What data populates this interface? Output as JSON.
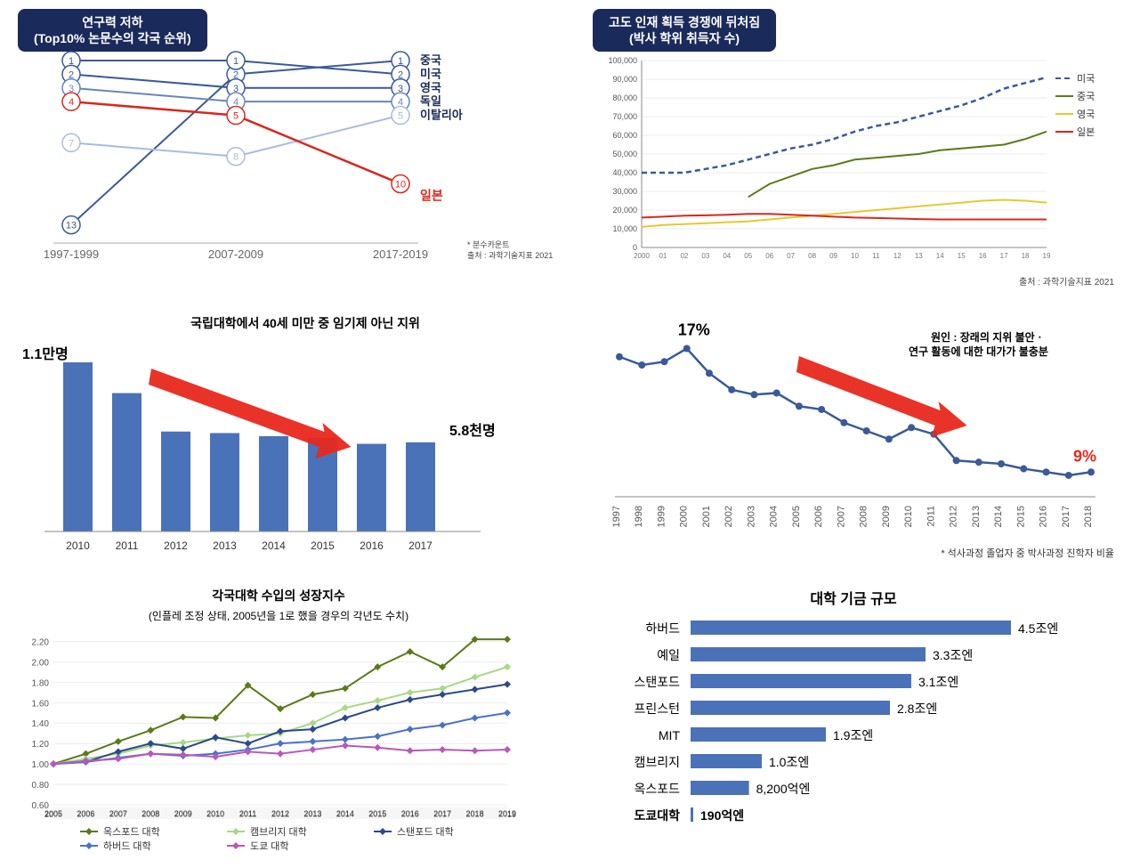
{
  "panel1": {
    "title_l1": "연구력 저하",
    "title_l2": "(Top10% 논문수의 각국 순위)",
    "periods": [
      "1997-1999",
      "2007-2009",
      "2017-2019"
    ],
    "series": [
      {
        "name": "중국",
        "color": "#3a5a98",
        "values": [
          13,
          2,
          1
        ]
      },
      {
        "name": "미국",
        "color": "#3a5a98",
        "values": [
          1,
          1,
          2
        ]
      },
      {
        "name": "영국",
        "color": "#3a5a98",
        "values": [
          2,
          3,
          3
        ]
      },
      {
        "name": "독일",
        "color": "#6a85b8",
        "values": [
          3,
          4,
          4
        ]
      },
      {
        "name": "이탈리아",
        "color": "#a8bbe0",
        "values": [
          7,
          8,
          5
        ]
      }
    ],
    "highlight": {
      "name": "일본",
      "color": "#d8281e",
      "values": [
        4,
        5,
        10
      ]
    },
    "footnote1": "* 분수카운트",
    "footnote2": "출처 : 과학기술지표 2021"
  },
  "panel2": {
    "title_l1": "고도 인재 획득 경쟁에 뒤처짐",
    "title_l2": "(박사 학위 취득자 수)",
    "y_ticks": [
      0,
      10000,
      20000,
      30000,
      40000,
      50000,
      60000,
      70000,
      80000,
      90000,
      100000
    ],
    "x_ticks": [
      "2000",
      "01",
      "02",
      "03",
      "04",
      "05",
      "06",
      "07",
      "08",
      "09",
      "10",
      "11",
      "12",
      "13",
      "14",
      "15",
      "16",
      "17",
      "18",
      "19"
    ],
    "series": [
      {
        "name": "미국",
        "color": "#3a5a98",
        "dash": "6,4",
        "w": 2.5,
        "vals": [
          40000,
          40000,
          40000,
          42000,
          44000,
          47000,
          50000,
          53000,
          55000,
          58000,
          62000,
          65000,
          67000,
          70000,
          73000,
          76000,
          80000,
          85000,
          88000,
          91000
        ]
      },
      {
        "name": "중국",
        "color": "#5a7a1a",
        "dash": "0",
        "w": 2,
        "vals": [
          null,
          null,
          null,
          null,
          null,
          27000,
          34000,
          38000,
          42000,
          44000,
          47000,
          48000,
          49000,
          50000,
          52000,
          53000,
          54000,
          55000,
          58000,
          62000
        ]
      },
      {
        "name": "영국",
        "color": "#e8c830",
        "dash": "0",
        "w": 2,
        "vals": [
          11000,
          12000,
          12500,
          13000,
          13500,
          14000,
          15000,
          16000,
          17000,
          18000,
          19000,
          20000,
          21000,
          22000,
          23000,
          24000,
          25000,
          25500,
          25000,
          24000
        ]
      },
      {
        "name": "일본",
        "color": "#d8281e",
        "dash": "0",
        "w": 2,
        "vals": [
          16000,
          16500,
          17000,
          17200,
          17500,
          18000,
          18000,
          17500,
          17000,
          16500,
          16000,
          15800,
          15500,
          15200,
          15000,
          15000,
          15000,
          15000,
          15000,
          15000
        ]
      }
    ],
    "footnote": "출처 : 과학기술지표 2021"
  },
  "panel3": {
    "title": "국립대학에서 40세 미만 중 임기제 아닌 지위",
    "label_start": "1.1만명",
    "label_end": "5.8천명",
    "years": [
      "2010",
      "2011",
      "2012",
      "2013",
      "2014",
      "2015",
      "2016",
      "2017"
    ],
    "values": [
      11000,
      9000,
      6500,
      6400,
      6200,
      6100,
      5700,
      5800
    ],
    "bar_color": "#4a72b8",
    "arrow_color": "#e8281e"
  },
  "panel4": {
    "label_start": "17%",
    "label_end": "9%",
    "note_l1": "원인 : 장래의 지위 불안ㆍ",
    "note_l2": "연구 활동에 대한 대가가 불충분",
    "years": [
      "1997",
      "1998",
      "1999",
      "2000",
      "2001",
      "2002",
      "2003",
      "2004",
      "2005",
      "2006",
      "2007",
      "2008",
      "2009",
      "2010",
      "2011",
      "2012",
      "2013",
      "2014",
      "2015",
      "2016",
      "2017",
      "2018"
    ],
    "values": [
      16.5,
      16,
      16.2,
      17,
      15.5,
      14.5,
      14.2,
      14.3,
      13.5,
      13.3,
      12.5,
      12.0,
      11.5,
      12.2,
      11.8,
      10.2,
      10.1,
      10.0,
      9.7,
      9.5,
      9.3,
      9.5
    ],
    "line_color": "#3a5a98",
    "arrow_color": "#e8281e",
    "footnote": "* 석사과정 졸업자 중 박사과정 진학자 비율"
  },
  "panel5": {
    "title_l1": "각국대학 수입의 성장지수",
    "title_l2": "(인플레 조정 상태, 2005년을 1로 했을 경우의 각년도 수치)",
    "years": [
      "2005",
      "2006",
      "2007",
      "2008",
      "2009",
      "2010",
      "2011",
      "2012",
      "2013",
      "2014",
      "2015",
      "2016",
      "2017",
      "2018",
      "2019"
    ],
    "y_ticks": [
      "0.60",
      "0.80",
      "1.00",
      "1.20",
      "1.40",
      "1.60",
      "1.80",
      "2.00",
      "2.20"
    ],
    "series": [
      {
        "name": "옥스포드 대학",
        "color": "#5a7a1a",
        "marker": "diamond",
        "vals": [
          1.0,
          1.1,
          1.22,
          1.33,
          1.46,
          1.45,
          1.77,
          1.54,
          1.68,
          1.74,
          1.95,
          2.1,
          1.95,
          2.22,
          2.22
        ]
      },
      {
        "name": "캠브리지 대학",
        "color": "#a8d888",
        "marker": "diamond",
        "vals": [
          1.0,
          1.05,
          1.1,
          1.18,
          1.21,
          1.25,
          1.28,
          1.3,
          1.4,
          1.55,
          1.62,
          1.7,
          1.74,
          1.85,
          1.95
        ]
      },
      {
        "name": "스탠포드 대학",
        "color": "#2a4a88",
        "marker": "diamond",
        "vals": [
          1.0,
          1.02,
          1.12,
          1.2,
          1.15,
          1.26,
          1.2,
          1.32,
          1.34,
          1.45,
          1.55,
          1.63,
          1.68,
          1.73,
          1.78
        ]
      },
      {
        "name": "하버드 대학",
        "color": "#4a72c8",
        "marker": "diamond",
        "vals": [
          1.0,
          1.02,
          1.06,
          1.1,
          1.08,
          1.1,
          1.14,
          1.2,
          1.22,
          1.24,
          1.27,
          1.34,
          1.38,
          1.45,
          1.5
        ]
      },
      {
        "name": "도쿄 대학",
        "color": "#b858b8",
        "marker": "diamond",
        "vals": [
          1.0,
          1.03,
          1.05,
          1.1,
          1.09,
          1.07,
          1.12,
          1.1,
          1.14,
          1.18,
          1.16,
          1.13,
          1.14,
          1.13,
          1.14
        ]
      }
    ]
  },
  "panel6": {
    "title": "대학 기금 규모",
    "items": [
      {
        "name": "하버드",
        "value": 4.5,
        "label": "4.5조엔"
      },
      {
        "name": "예일",
        "value": 3.3,
        "label": "3.3조엔"
      },
      {
        "name": "스탠포드",
        "value": 3.1,
        "label": "3.1조엔"
      },
      {
        "name": "프린스턴",
        "value": 2.8,
        "label": "2.8조엔"
      },
      {
        "name": "MIT",
        "value": 1.9,
        "label": "1.9조엔"
      },
      {
        "name": "캠브리지",
        "value": 1.0,
        "label": "1.0조엔"
      },
      {
        "name": "옥스포드",
        "value": 0.82,
        "label": "8,200억엔"
      },
      {
        "name": "도쿄대학",
        "value": 0.019,
        "label": "190억엔",
        "bold": true
      }
    ],
    "bar_color": "#4a72b8",
    "max": 4.5
  }
}
